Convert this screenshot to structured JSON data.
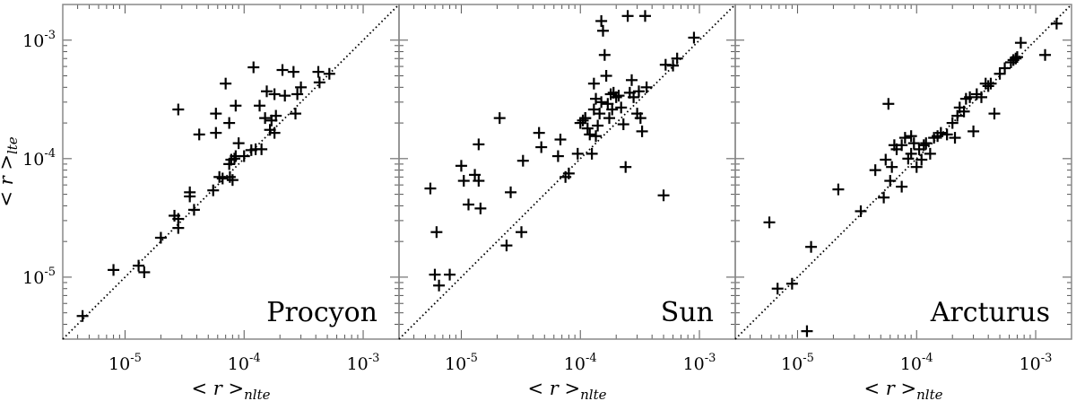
{
  "chart_data": {
    "type": "scatter",
    "xscale": "log",
    "yscale": "log",
    "xlim": [
      3e-06,
      0.002
    ],
    "ylim": [
      3e-06,
      0.002
    ],
    "xlabel": "< r >nlte",
    "ylabel": "< r >lte",
    "x_ticks": [
      {
        "value": 1e-05,
        "base": "10",
        "exp": "-5"
      },
      {
        "value": 0.0001,
        "base": "10",
        "exp": "-4"
      },
      {
        "value": 0.001,
        "base": "10",
        "exp": "-3"
      }
    ],
    "y_ticks": [
      {
        "value": 1e-05,
        "base": "10",
        "exp": "-5"
      },
      {
        "value": 0.0001,
        "base": "10",
        "exp": "-4"
      },
      {
        "value": 0.001,
        "base": "10",
        "exp": "-3"
      }
    ],
    "reference_line": "y = x",
    "grid": false,
    "panels": [
      {
        "label": "Procyon",
        "points": [
          [
            4.4e-06,
            4.7e-06
          ],
          [
            8e-06,
            1.15e-05
          ],
          [
            1.3e-05,
            1.25e-05
          ],
          [
            1.45e-05,
            1.1e-05
          ],
          [
            2e-05,
            2.15e-05
          ],
          [
            2.6e-05,
            3.3e-05
          ],
          [
            2.8e-05,
            3.1e-05
          ],
          [
            2.8e-05,
            2.6e-05
          ],
          [
            3.5e-05,
            4.8e-05
          ],
          [
            3.5e-05,
            5.2e-05
          ],
          [
            3.8e-05,
            3.7e-05
          ],
          [
            4.2e-05,
            0.00016
          ],
          [
            5.5e-05,
            5.4e-05
          ],
          [
            5.8e-05,
            0.000165
          ],
          [
            6.2e-05,
            7e-05
          ],
          [
            6.6e-05,
            6.8e-05
          ],
          [
            7.5e-05,
            9e-05
          ],
          [
            7.6e-05,
            7e-05
          ],
          [
            7.8e-05,
            9.8e-05
          ],
          [
            8e-05,
            6.6e-05
          ],
          [
            8.3e-05,
            0.0001
          ],
          [
            8.5e-05,
            0.000105
          ],
          [
            9e-05,
            0.000135
          ],
          [
            0.0001,
            0.000105
          ],
          [
            0.000115,
            0.000118
          ],
          [
            0.000125,
            0.00012
          ],
          [
            0.000135,
            0.00028
          ],
          [
            0.00015,
            0.00022
          ],
          [
            0.000165,
            0.000175
          ],
          [
            0.00018,
            0.000165
          ],
          [
            0.000185,
            0.00023
          ],
          [
            2.8e-05,
            0.00026
          ],
          [
            5.8e-05,
            0.00024
          ],
          [
            7e-05,
            0.00043
          ],
          [
            7.5e-05,
            0.0002
          ],
          [
            8.5e-05,
            0.00028
          ],
          [
            0.00012,
            0.00059
          ],
          [
            0.000155,
            0.00037
          ],
          [
            0.00018,
            0.00035
          ],
          [
            0.00021,
            0.00056
          ],
          [
            0.00022,
            0.00034
          ],
          [
            0.00026,
            0.00054
          ],
          [
            0.00027,
            0.00024
          ],
          [
            0.00028,
            0.00035
          ],
          [
            0.0003,
            0.0004
          ],
          [
            0.00042,
            0.00054
          ],
          [
            0.00043,
            0.00044
          ],
          [
            0.00052,
            0.00052
          ],
          [
            0.00017,
            0.00021
          ],
          [
            0.00014,
            0.00012
          ]
        ]
      },
      {
        "label": "Sun",
        "points": [
          [
            5.5e-06,
            5.6e-05
          ],
          [
            6e-06,
            1.05e-05
          ],
          [
            6.2e-06,
            2.4e-05
          ],
          [
            6.5e-06,
            8.5e-06
          ],
          [
            8e-06,
            1.05e-05
          ],
          [
            1e-05,
            8.7e-05
          ],
          [
            1.05e-05,
            6.5e-05
          ],
          [
            1.15e-05,
            4.1e-05
          ],
          [
            1.3e-05,
            7.3e-05
          ],
          [
            1.4e-05,
            6.5e-05
          ],
          [
            1.4e-05,
            0.000132
          ],
          [
            1.45e-05,
            3.8e-05
          ],
          [
            2.1e-05,
            0.00022
          ],
          [
            2.4e-05,
            1.85e-05
          ],
          [
            2.6e-05,
            5.2e-05
          ],
          [
            3.2e-05,
            2.4e-05
          ],
          [
            3.3e-05,
            9.6e-05
          ],
          [
            4.5e-05,
            0.000165
          ],
          [
            4.7e-05,
            0.000125
          ],
          [
            6.5e-05,
            0.000105
          ],
          [
            6.8e-05,
            0.000145
          ],
          [
            7.5e-05,
            7e-05
          ],
          [
            8e-05,
            7.5e-05
          ],
          [
            9.5e-05,
            0.00011
          ],
          [
            0.0001,
            0.0002
          ],
          [
            0.000105,
            0.00021
          ],
          [
            0.00011,
            0.00022
          ],
          [
            0.000115,
            0.00018
          ],
          [
            0.00012,
            0.00016
          ],
          [
            0.000125,
            0.00011
          ],
          [
            0.00013,
            0.00026
          ],
          [
            0.00013,
            0.00043
          ],
          [
            0.000135,
            0.00032
          ],
          [
            0.00014,
            0.00019
          ],
          [
            0.000145,
            0.00024
          ],
          [
            0.00015,
            0.0003
          ],
          [
            0.00015,
            0.00145
          ],
          [
            0.000155,
            0.0012
          ],
          [
            0.00016,
            0.00075
          ],
          [
            0.000165,
            0.0005
          ],
          [
            0.00017,
            0.00029
          ],
          [
            0.000175,
            0.00022
          ],
          [
            0.00018,
            0.00035
          ],
          [
            0.000185,
            0.00026
          ],
          [
            0.00019,
            0.00036
          ],
          [
            0.0002,
            0.00033
          ],
          [
            0.00021,
            0.00034
          ],
          [
            0.00022,
            0.00027
          ],
          [
            0.00023,
            0.000195
          ],
          [
            0.00024,
            8.5e-05
          ],
          [
            0.00025,
            0.0016
          ],
          [
            0.00026,
            0.00036
          ],
          [
            0.00027,
            0.00046
          ],
          [
            0.00028,
            0.00033
          ],
          [
            0.0003,
            0.00024
          ],
          [
            0.00031,
            0.00037
          ],
          [
            0.00032,
            0.00022
          ],
          [
            0.00033,
            0.00017
          ],
          [
            0.00035,
            0.0016
          ],
          [
            0.00036,
            0.0004
          ],
          [
            0.0005,
            4.9e-05
          ],
          [
            0.00052,
            0.00062
          ],
          [
            0.0006,
            0.00061
          ],
          [
            0.00065,
            0.0007
          ],
          [
            0.0009,
            0.00105
          ],
          [
            0.000135,
            0.000155
          ],
          [
            0.00011,
            0.00022
          ]
        ]
      },
      {
        "label": "Arcturus",
        "points": [
          [
            5.8e-06,
            2.9e-05
          ],
          [
            6.8e-06,
            8e-06
          ],
          [
            9e-06,
            8.8e-06
          ],
          [
            1.2e-05,
            3.5e-06
          ],
          [
            1.3e-05,
            1.8e-05
          ],
          [
            2.2e-05,
            5.5e-05
          ],
          [
            3.4e-05,
            3.6e-05
          ],
          [
            4.5e-05,
            8e-05
          ],
          [
            5.3e-05,
            4.7e-05
          ],
          [
            5.5e-05,
            9.8e-05
          ],
          [
            5.8e-05,
            0.00029
          ],
          [
            6e-05,
            6.5e-05
          ],
          [
            6.2e-05,
            8.5e-05
          ],
          [
            6.5e-05,
            0.00013
          ],
          [
            6.8e-05,
            0.00012
          ],
          [
            7.5e-05,
            5.8e-05
          ],
          [
            8e-05,
            0.00015
          ],
          [
            8.5e-05,
            0.0001
          ],
          [
            9e-05,
            0.00011
          ],
          [
            9.5e-05,
            0.000135
          ],
          [
            0.0001,
            8.5e-05
          ],
          [
            0.000105,
            0.00012
          ],
          [
            0.00011,
            9.8e-05
          ],
          [
            0.000115,
            0.00013
          ],
          [
            0.00012,
            0.000135
          ],
          [
            0.00013,
            0.00011
          ],
          [
            0.00014,
            0.00015
          ],
          [
            0.00015,
            0.000155
          ],
          [
            0.00016,
            0.000165
          ],
          [
            0.00018,
            0.00016
          ],
          [
            0.0002,
            0.0002
          ],
          [
            0.00021,
            0.00015
          ],
          [
            0.00022,
            0.00023
          ],
          [
            0.00023,
            0.00027
          ],
          [
            0.00025,
            0.00025
          ],
          [
            0.00026,
            0.00032
          ],
          [
            0.00028,
            0.00033
          ],
          [
            0.0003,
            0.00017
          ],
          [
            0.00032,
            0.00035
          ],
          [
            0.00035,
            0.00033
          ],
          [
            0.00038,
            0.00043
          ],
          [
            0.0004,
            0.00041
          ],
          [
            0.00042,
            0.00043
          ],
          [
            0.00045,
            0.00024
          ],
          [
            0.0005,
            0.00052
          ],
          [
            0.00055,
            0.00058
          ],
          [
            0.00062,
            0.00065
          ],
          [
            0.00065,
            0.00068
          ],
          [
            0.00068,
            0.0007
          ],
          [
            0.0007,
            0.00072
          ],
          [
            0.00075,
            0.00095
          ],
          [
            0.0012,
            0.00075
          ],
          [
            0.0015,
            0.00138
          ],
          [
            7.5e-05,
            0.00013
          ],
          [
            9e-05,
            0.000155
          ]
        ]
      }
    ]
  }
}
